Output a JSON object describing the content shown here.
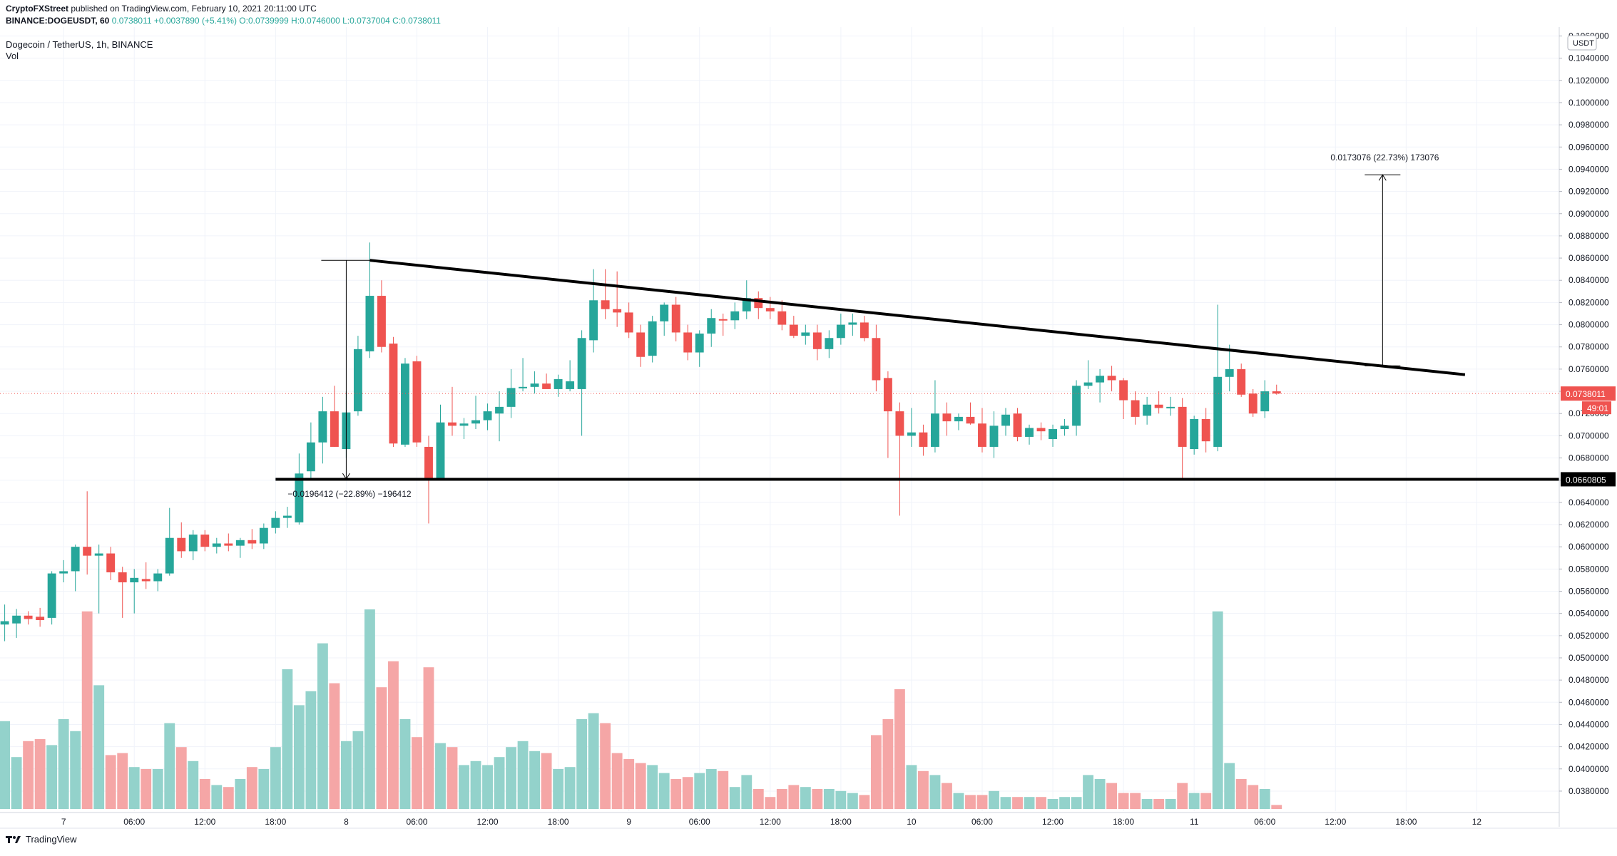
{
  "header": {
    "publisher": "CryptoFXStreet",
    "published_text": "published on TradingView.com, February 10, 2021 20:11:00 UTC",
    "symbol": "BINANCE:DOGEUSDT, 60",
    "ohlc": "0.0738011 +0.0037890 (+5.41%) O:0.0739999 H:0.0746000 L:0.0737004 C:0.0738011",
    "pair_title": "Dogecoin / TetherUS, 1h, BINANCE",
    "volume_label": "Vol"
  },
  "footer": {
    "brand": "TradingView"
  },
  "colors": {
    "up": "#26a69a",
    "down": "#ef5350",
    "up_vol": "#93d2cb",
    "down_vol": "#f5a6a6",
    "grid": "#f0f3fa",
    "text": "#131722"
  },
  "chart_data": {
    "type": "candlestick",
    "title": "Dogecoin / TetherUS, 1h, BINANCE",
    "currency_label": "USDT",
    "y_ticks": [
      "0.1060000",
      "0.1040000",
      "0.1020000",
      "0.1000000",
      "0.0980000",
      "0.0960000",
      "0.0940000",
      "0.0920000",
      "0.0900000",
      "0.0880000",
      "0.0860000",
      "0.0840000",
      "0.0820000",
      "0.0800000",
      "0.0780000",
      "0.0760000",
      "0.0740000",
      "0.0720000",
      "0.0700000",
      "0.0680000",
      "0.0660000",
      "0.0640000",
      "0.0620000",
      "0.0600000",
      "0.0580000",
      "0.0560000",
      "0.0540000",
      "0.0520000",
      "0.0500000",
      "0.0480000",
      "0.0460000",
      "0.0440000",
      "0.0420000",
      "0.0400000",
      "0.0380000"
    ],
    "y_range": [
      0.0362,
      0.1068
    ],
    "x_ticks": [
      "7",
      "06:00",
      "12:00",
      "18:00",
      "8",
      "06:00",
      "12:00",
      "18:00",
      "9",
      "06:00",
      "12:00",
      "18:00",
      "10",
      "06:00",
      "12:00",
      "18:00",
      "11",
      "06:00",
      "12:00",
      "18:00",
      "12"
    ],
    "x_ticks_hours": [
      0,
      6,
      12,
      18,
      24,
      30,
      36,
      42,
      48,
      54,
      60,
      66,
      72,
      78,
      84,
      90,
      96,
      102,
      108,
      114,
      120
    ],
    "x_range_hours": [
      -5.4,
      127.0
    ],
    "candles": [
      {
        "t": -5,
        "o": 0.053,
        "h": 0.0548,
        "l": 0.0515,
        "c": 0.0533,
        "v": 0.44
      },
      {
        "t": -4,
        "o": 0.0531,
        "h": 0.0544,
        "l": 0.0518,
        "c": 0.0538,
        "v": 0.26
      },
      {
        "t": -3,
        "o": 0.0538,
        "h": 0.0542,
        "l": 0.053,
        "c": 0.0535,
        "v": 0.34
      },
      {
        "t": -2,
        "o": 0.0537,
        "h": 0.0545,
        "l": 0.0528,
        "c": 0.0534,
        "v": 0.35
      },
      {
        "t": -1,
        "o": 0.0536,
        "h": 0.0578,
        "l": 0.053,
        "c": 0.0576,
        "v": 0.32
      },
      {
        "t": 0,
        "o": 0.0576,
        "h": 0.0588,
        "l": 0.0568,
        "c": 0.0578,
        "v": 0.45
      },
      {
        "t": 1,
        "o": 0.0578,
        "h": 0.0602,
        "l": 0.056,
        "c": 0.06,
        "v": 0.39
      },
      {
        "t": 2,
        "o": 0.06,
        "h": 0.065,
        "l": 0.0575,
        "c": 0.0592,
        "v": 0.99
      },
      {
        "t": 3,
        "o": 0.0592,
        "h": 0.0602,
        "l": 0.054,
        "c": 0.0594,
        "v": 0.62
      },
      {
        "t": 4,
        "o": 0.0594,
        "h": 0.06,
        "l": 0.057,
        "c": 0.0577,
        "v": 0.27
      },
      {
        "t": 5,
        "o": 0.0577,
        "h": 0.0582,
        "l": 0.0536,
        "c": 0.0568,
        "v": 0.28
      },
      {
        "t": 6,
        "o": 0.0568,
        "h": 0.058,
        "l": 0.054,
        "c": 0.0572,
        "v": 0.21
      },
      {
        "t": 7,
        "o": 0.0571,
        "h": 0.0586,
        "l": 0.0562,
        "c": 0.0569,
        "v": 0.2
      },
      {
        "t": 8,
        "o": 0.0569,
        "h": 0.058,
        "l": 0.056,
        "c": 0.0576,
        "v": 0.2
      },
      {
        "t": 9,
        "o": 0.0576,
        "h": 0.0635,
        "l": 0.0574,
        "c": 0.0608,
        "v": 0.43
      },
      {
        "t": 10,
        "o": 0.0608,
        "h": 0.0622,
        "l": 0.059,
        "c": 0.0596,
        "v": 0.31
      },
      {
        "t": 11,
        "o": 0.0596,
        "h": 0.0615,
        "l": 0.0588,
        "c": 0.0611,
        "v": 0.24
      },
      {
        "t": 12,
        "o": 0.0611,
        "h": 0.0615,
        "l": 0.0596,
        "c": 0.06,
        "v": 0.15
      },
      {
        "t": 13,
        "o": 0.06,
        "h": 0.0608,
        "l": 0.0594,
        "c": 0.0603,
        "v": 0.12
      },
      {
        "t": 14,
        "o": 0.0603,
        "h": 0.0612,
        "l": 0.0596,
        "c": 0.0601,
        "v": 0.11
      },
      {
        "t": 15,
        "o": 0.0601,
        "h": 0.0608,
        "l": 0.059,
        "c": 0.0606,
        "v": 0.15
      },
      {
        "t": 16,
        "o": 0.0606,
        "h": 0.0616,
        "l": 0.0598,
        "c": 0.0603,
        "v": 0.21
      },
      {
        "t": 17,
        "o": 0.0603,
        "h": 0.0621,
        "l": 0.0598,
        "c": 0.0617,
        "v": 0.2
      },
      {
        "t": 18,
        "o": 0.0617,
        "h": 0.0632,
        "l": 0.0612,
        "c": 0.0626,
        "v": 0.31
      },
      {
        "t": 19,
        "o": 0.0626,
        "h": 0.0636,
        "l": 0.0617,
        "c": 0.0628,
        "v": 0.7
      },
      {
        "t": 20,
        "o": 0.0622,
        "h": 0.0684,
        "l": 0.062,
        "c": 0.0666,
        "v": 0.52
      },
      {
        "t": 21,
        "o": 0.0668,
        "h": 0.0712,
        "l": 0.0662,
        "c": 0.0694,
        "v": 0.59
      },
      {
        "t": 22,
        "o": 0.0694,
        "h": 0.0735,
        "l": 0.0675,
        "c": 0.0722,
        "v": 0.83
      },
      {
        "t": 23,
        "o": 0.0722,
        "h": 0.0745,
        "l": 0.069,
        "c": 0.069,
        "v": 0.63
      },
      {
        "t": 24,
        "o": 0.0688,
        "h": 0.074,
        "l": 0.068,
        "c": 0.0721,
        "v": 0.34
      },
      {
        "t": 25,
        "o": 0.0722,
        "h": 0.079,
        "l": 0.0718,
        "c": 0.0778,
        "v": 0.39
      },
      {
        "t": 26,
        "o": 0.0776,
        "h": 0.0874,
        "l": 0.077,
        "c": 0.0826,
        "v": 1.0
      },
      {
        "t": 27,
        "o": 0.0826,
        "h": 0.084,
        "l": 0.0775,
        "c": 0.078,
        "v": 0.61
      },
      {
        "t": 28,
        "o": 0.0783,
        "h": 0.0789,
        "l": 0.069,
        "c": 0.0693,
        "v": 0.74
      },
      {
        "t": 29,
        "o": 0.0692,
        "h": 0.077,
        "l": 0.069,
        "c": 0.0765,
        "v": 0.45
      },
      {
        "t": 30,
        "o": 0.0767,
        "h": 0.0772,
        "l": 0.069,
        "c": 0.0694,
        "v": 0.36
      },
      {
        "t": 31,
        "o": 0.069,
        "h": 0.07,
        "l": 0.0621,
        "c": 0.0661,
        "v": 0.71
      },
      {
        "t": 32,
        "o": 0.0661,
        "h": 0.0728,
        "l": 0.066,
        "c": 0.0712,
        "v": 0.33
      },
      {
        "t": 33,
        "o": 0.0712,
        "h": 0.0744,
        "l": 0.07,
        "c": 0.0709,
        "v": 0.31
      },
      {
        "t": 34,
        "o": 0.0709,
        "h": 0.0716,
        "l": 0.0697,
        "c": 0.0711,
        "v": 0.22
      },
      {
        "t": 35,
        "o": 0.0711,
        "h": 0.0736,
        "l": 0.0706,
        "c": 0.0714,
        "v": 0.24
      },
      {
        "t": 36,
        "o": 0.0714,
        "h": 0.0729,
        "l": 0.0705,
        "c": 0.0722,
        "v": 0.22
      },
      {
        "t": 37,
        "o": 0.072,
        "h": 0.074,
        "l": 0.0695,
        "c": 0.0726,
        "v": 0.26
      },
      {
        "t": 38,
        "o": 0.0726,
        "h": 0.076,
        "l": 0.0716,
        "c": 0.0743,
        "v": 0.31
      },
      {
        "t": 39,
        "o": 0.0743,
        "h": 0.077,
        "l": 0.074,
        "c": 0.0744,
        "v": 0.34
      },
      {
        "t": 40,
        "o": 0.0744,
        "h": 0.0758,
        "l": 0.0738,
        "c": 0.0747,
        "v": 0.29
      },
      {
        "t": 41,
        "o": 0.0747,
        "h": 0.0756,
        "l": 0.0743,
        "c": 0.0742,
        "v": 0.28
      },
      {
        "t": 42,
        "o": 0.0742,
        "h": 0.0755,
        "l": 0.0735,
        "c": 0.0751,
        "v": 0.2
      },
      {
        "t": 43,
        "o": 0.0742,
        "h": 0.0768,
        "l": 0.074,
        "c": 0.0749,
        "v": 0.21
      },
      {
        "t": 44,
        "o": 0.0742,
        "h": 0.0795,
        "l": 0.07,
        "c": 0.0788,
        "v": 0.45
      },
      {
        "t": 45,
        "o": 0.0786,
        "h": 0.085,
        "l": 0.0775,
        "c": 0.0822,
        "v": 0.48
      },
      {
        "t": 46,
        "o": 0.0822,
        "h": 0.085,
        "l": 0.0805,
        "c": 0.0814,
        "v": 0.43
      },
      {
        "t": 47,
        "o": 0.0814,
        "h": 0.0848,
        "l": 0.0798,
        "c": 0.0811,
        "v": 0.28
      },
      {
        "t": 48,
        "o": 0.0811,
        "h": 0.082,
        "l": 0.0788,
        "c": 0.0793,
        "v": 0.25
      },
      {
        "t": 49,
        "o": 0.0793,
        "h": 0.08,
        "l": 0.0762,
        "c": 0.0771,
        "v": 0.23
      },
      {
        "t": 50,
        "o": 0.0772,
        "h": 0.0808,
        "l": 0.0766,
        "c": 0.0803,
        "v": 0.22
      },
      {
        "t": 51,
        "o": 0.0803,
        "h": 0.082,
        "l": 0.079,
        "c": 0.0818,
        "v": 0.18
      },
      {
        "t": 52,
        "o": 0.0818,
        "h": 0.0825,
        "l": 0.0785,
        "c": 0.0793,
        "v": 0.15
      },
      {
        "t": 53,
        "o": 0.0793,
        "h": 0.08,
        "l": 0.0768,
        "c": 0.0775,
        "v": 0.16
      },
      {
        "t": 54,
        "o": 0.0775,
        "h": 0.0795,
        "l": 0.0762,
        "c": 0.0792,
        "v": 0.18
      },
      {
        "t": 55,
        "o": 0.0792,
        "h": 0.0814,
        "l": 0.078,
        "c": 0.0806,
        "v": 0.2
      },
      {
        "t": 56,
        "o": 0.0805,
        "h": 0.081,
        "l": 0.079,
        "c": 0.0804,
        "v": 0.19
      },
      {
        "t": 57,
        "o": 0.0804,
        "h": 0.082,
        "l": 0.0796,
        "c": 0.0812,
        "v": 0.11
      },
      {
        "t": 58,
        "o": 0.0812,
        "h": 0.084,
        "l": 0.0805,
        "c": 0.0824,
        "v": 0.17
      },
      {
        "t": 59,
        "o": 0.0824,
        "h": 0.083,
        "l": 0.0805,
        "c": 0.0815,
        "v": 0.1
      },
      {
        "t": 60,
        "o": 0.0815,
        "h": 0.0825,
        "l": 0.0805,
        "c": 0.0812,
        "v": 0.06
      },
      {
        "t": 61,
        "o": 0.0812,
        "h": 0.0822,
        "l": 0.0795,
        "c": 0.08,
        "v": 0.1
      },
      {
        "t": 62,
        "o": 0.08,
        "h": 0.0808,
        "l": 0.0788,
        "c": 0.079,
        "v": 0.12
      },
      {
        "t": 63,
        "o": 0.079,
        "h": 0.08,
        "l": 0.0782,
        "c": 0.0793,
        "v": 0.11
      },
      {
        "t": 64,
        "o": 0.0793,
        "h": 0.08,
        "l": 0.0768,
        "c": 0.0778,
        "v": 0.1
      },
      {
        "t": 65,
        "o": 0.0778,
        "h": 0.0795,
        "l": 0.077,
        "c": 0.0788,
        "v": 0.1
      },
      {
        "t": 66,
        "o": 0.0788,
        "h": 0.081,
        "l": 0.0782,
        "c": 0.08,
        "v": 0.09
      },
      {
        "t": 67,
        "o": 0.08,
        "h": 0.081,
        "l": 0.079,
        "c": 0.0802,
        "v": 0.08
      },
      {
        "t": 68,
        "o": 0.0802,
        "h": 0.0808,
        "l": 0.0785,
        "c": 0.0788,
        "v": 0.07
      },
      {
        "t": 69,
        "o": 0.0788,
        "h": 0.08,
        "l": 0.074,
        "c": 0.075,
        "v": 0.37
      },
      {
        "t": 70,
        "o": 0.0752,
        "h": 0.0758,
        "l": 0.068,
        "c": 0.0722,
        "v": 0.45
      },
      {
        "t": 71,
        "o": 0.0722,
        "h": 0.073,
        "l": 0.0628,
        "c": 0.07,
        "v": 0.6
      },
      {
        "t": 72,
        "o": 0.07,
        "h": 0.0725,
        "l": 0.069,
        "c": 0.0703,
        "v": 0.22
      },
      {
        "t": 73,
        "o": 0.0703,
        "h": 0.071,
        "l": 0.0682,
        "c": 0.069,
        "v": 0.19
      },
      {
        "t": 74,
        "o": 0.069,
        "h": 0.075,
        "l": 0.0685,
        "c": 0.072,
        "v": 0.17
      },
      {
        "t": 75,
        "o": 0.072,
        "h": 0.073,
        "l": 0.07,
        "c": 0.0713,
        "v": 0.13
      },
      {
        "t": 76,
        "o": 0.0713,
        "h": 0.072,
        "l": 0.0705,
        "c": 0.0717,
        "v": 0.08
      },
      {
        "t": 77,
        "o": 0.0717,
        "h": 0.073,
        "l": 0.071,
        "c": 0.0711,
        "v": 0.07
      },
      {
        "t": 78,
        "o": 0.0711,
        "h": 0.0725,
        "l": 0.0685,
        "c": 0.069,
        "v": 0.07
      },
      {
        "t": 79,
        "o": 0.069,
        "h": 0.0722,
        "l": 0.068,
        "c": 0.0709,
        "v": 0.09
      },
      {
        "t": 80,
        "o": 0.0709,
        "h": 0.0725,
        "l": 0.07,
        "c": 0.0719,
        "v": 0.06
      },
      {
        "t": 81,
        "o": 0.072,
        "h": 0.0725,
        "l": 0.0695,
        "c": 0.0699,
        "v": 0.06
      },
      {
        "t": 82,
        "o": 0.0699,
        "h": 0.071,
        "l": 0.0692,
        "c": 0.0707,
        "v": 0.06
      },
      {
        "t": 83,
        "o": 0.0707,
        "h": 0.0712,
        "l": 0.0696,
        "c": 0.0704,
        "v": 0.06
      },
      {
        "t": 84,
        "o": 0.0697,
        "h": 0.071,
        "l": 0.069,
        "c": 0.0706,
        "v": 0.05
      },
      {
        "t": 85,
        "o": 0.0706,
        "h": 0.0715,
        "l": 0.07,
        "c": 0.0709,
        "v": 0.06
      },
      {
        "t": 86,
        "o": 0.0709,
        "h": 0.075,
        "l": 0.07,
        "c": 0.0745,
        "v": 0.06
      },
      {
        "t": 87,
        "o": 0.0745,
        "h": 0.0768,
        "l": 0.0742,
        "c": 0.0748,
        "v": 0.17
      },
      {
        "t": 88,
        "o": 0.0748,
        "h": 0.076,
        "l": 0.073,
        "c": 0.0754,
        "v": 0.15
      },
      {
        "t": 89,
        "o": 0.0754,
        "h": 0.0763,
        "l": 0.074,
        "c": 0.075,
        "v": 0.13
      },
      {
        "t": 90,
        "o": 0.075,
        "h": 0.0752,
        "l": 0.0715,
        "c": 0.0732,
        "v": 0.08
      },
      {
        "t": 91,
        "o": 0.0732,
        "h": 0.074,
        "l": 0.071,
        "c": 0.0717,
        "v": 0.08
      },
      {
        "t": 92,
        "o": 0.0718,
        "h": 0.0735,
        "l": 0.071,
        "c": 0.0728,
        "v": 0.05
      },
      {
        "t": 93,
        "o": 0.0728,
        "h": 0.074,
        "l": 0.072,
        "c": 0.0725,
        "v": 0.05
      },
      {
        "t": 94,
        "o": 0.0725,
        "h": 0.0735,
        "l": 0.0718,
        "c": 0.0726,
        "v": 0.05
      },
      {
        "t": 95,
        "o": 0.0726,
        "h": 0.0734,
        "l": 0.066,
        "c": 0.069,
        "v": 0.13
      },
      {
        "t": 96,
        "o": 0.0688,
        "h": 0.0718,
        "l": 0.0683,
        "c": 0.0715,
        "v": 0.08
      },
      {
        "t": 97,
        "o": 0.0715,
        "h": 0.0725,
        "l": 0.0685,
        "c": 0.0695,
        "v": 0.08
      },
      {
        "t": 98,
        "o": 0.069,
        "h": 0.0818,
        "l": 0.0686,
        "c": 0.0753,
        "v": 0.99
      },
      {
        "t": 99,
        "o": 0.0753,
        "h": 0.0782,
        "l": 0.074,
        "c": 0.076,
        "v": 0.23
      },
      {
        "t": 100,
        "o": 0.076,
        "h": 0.0765,
        "l": 0.0735,
        "c": 0.0737,
        "v": 0.15
      },
      {
        "t": 101,
        "o": 0.0738,
        "h": 0.0742,
        "l": 0.0717,
        "c": 0.072,
        "v": 0.12
      },
      {
        "t": 102,
        "o": 0.0722,
        "h": 0.075,
        "l": 0.0716,
        "c": 0.074,
        "v": 0.1
      },
      {
        "t": 103,
        "o": 0.074,
        "h": 0.0746,
        "l": 0.0737,
        "c": 0.0738,
        "v": 0.02
      }
    ],
    "annotations": {
      "resistance_trendline": {
        "start_t": 26,
        "start_y": 0.0858,
        "end_t": 119,
        "end_y": 0.0755
      },
      "support_line": {
        "start_t": 18,
        "end_t": 127,
        "y": 0.0660805
      },
      "support_price_label": "0.0660805",
      "last_price_label": "0.0738011",
      "last_price": 0.0738011,
      "countdown_label": "49:01",
      "measure_down": {
        "t": 24,
        "y_top": 0.0858,
        "y_bottom": 0.0661,
        "label": "−0.0196412 (−22.89%) −196412"
      },
      "measure_up": {
        "t": 112,
        "y_bottom": 0.0763,
        "y_top": 0.0935,
        "label": "0.0173076 (22.73%) 173076"
      }
    }
  }
}
